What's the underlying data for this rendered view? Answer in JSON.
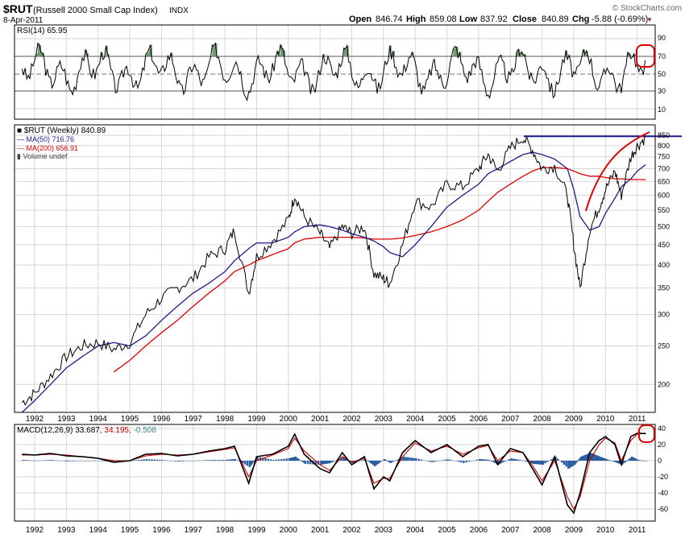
{
  "header": {
    "symbol": "$RUT",
    "name": "(Russell 2000 Small Cap Index)",
    "exchange": "INDX",
    "date": "8-Apr-2011",
    "watermark": "© StockCharts.com",
    "open_label": "Open",
    "open": "846.74",
    "high_label": "High",
    "high": "859.08",
    "low_label": "Low",
    "low": "837.92",
    "close_label": "Close",
    "close": "840.89",
    "chg_label": "Chg",
    "chg": "-5.88 (-0.69%)",
    "chg_arrow": "▼"
  },
  "rsi_panel": {
    "label": "RSI(14) 65.95",
    "ticks": [
      "90",
      "70",
      "50",
      "30",
      "10"
    ]
  },
  "price_panel": {
    "legend_main": "$RUT (Weekly) 840.89",
    "legend_ma50": "MA(50) 716.76",
    "legend_ma200": "MA(200) 656.91",
    "legend_volume": "Volume undef",
    "ticks": [
      "850",
      "800",
      "750",
      "700",
      "650",
      "600",
      "550",
      "500",
      "450",
      "400",
      "350",
      "300",
      "250",
      "200"
    ]
  },
  "macd_panel": {
    "label_main": "MACD(12,26,9)",
    "macd_value": "33.687,",
    "signal_value": "34.195,",
    "hist_value": "-0.508",
    "ticks": [
      "40",
      "20",
      "0",
      "-20",
      "-40",
      "-60"
    ]
  },
  "x_axis": {
    "years": [
      "1992",
      "1993",
      "1994",
      "1995",
      "1996",
      "1997",
      "1998",
      "1999",
      "2000",
      "2001",
      "2002",
      "2003",
      "2004",
      "2005",
      "2006",
      "2007",
      "2008",
      "2009",
      "2010",
      "2011"
    ]
  },
  "colors": {
    "price": "#000000",
    "price_down": "#8b1a1a",
    "ma50": "#1c1c8c",
    "ma200": "#dd0000",
    "macd": "#000000",
    "signal": "#cc0000",
    "hist": "#2b5fa0",
    "hist_value": "#3a8a8a",
    "rsi_fill": "#5a8a5a",
    "resistance": "#1c1c8c",
    "annotation": "#dd0000"
  },
  "chart_data": [
    {
      "type": "line",
      "title": "$RUT (Weekly) 840.89",
      "xlabel": "",
      "ylabel": "",
      "scale": "log",
      "ylim": [
        170,
        870
      ],
      "x": [
        1991.6,
        1992.0,
        1992.5,
        1993.0,
        1993.5,
        1994.0,
        1994.5,
        1995.0,
        1995.5,
        1996.0,
        1996.5,
        1997.0,
        1997.5,
        1998.0,
        1998.3,
        1998.75,
        1999.0,
        1999.5,
        2000.0,
        2000.2,
        2000.5,
        2001.0,
        2001.3,
        2001.7,
        2002.0,
        2002.4,
        2002.7,
        2003.0,
        2003.2,
        2003.6,
        2004.0,
        2004.5,
        2005.0,
        2005.5,
        2006.0,
        2006.3,
        2006.6,
        2007.0,
        2007.4,
        2007.7,
        2008.0,
        2008.4,
        2008.8,
        2009.0,
        2009.2,
        2009.5,
        2009.8,
        2010.0,
        2010.3,
        2010.5,
        2010.8,
        2011.0,
        2011.27
      ],
      "series": [
        {
          "name": "$RUT",
          "values": [
            180,
            190,
            210,
            235,
            250,
            255,
            245,
            255,
            300,
            330,
            350,
            370,
            420,
            440,
            490,
            340,
            420,
            460,
            520,
            600,
            530,
            480,
            440,
            500,
            480,
            500,
            380,
            370,
            360,
            450,
            580,
            560,
            640,
            630,
            700,
            760,
            690,
            790,
            840,
            780,
            700,
            710,
            600,
            450,
            350,
            490,
            560,
            620,
            690,
            600,
            750,
            800,
            840
          ]
        },
        {
          "name": "MA(50)",
          "values": [
            170,
            182,
            200,
            220,
            235,
            250,
            255,
            250,
            265,
            290,
            315,
            340,
            360,
            385,
            410,
            440,
            455,
            455,
            470,
            485,
            500,
            505,
            500,
            490,
            480,
            470,
            460,
            445,
            430,
            420,
            450,
            500,
            560,
            600,
            640,
            680,
            700,
            730,
            760,
            770,
            760,
            740,
            700,
            620,
            530,
            490,
            500,
            540,
            590,
            630,
            660,
            690,
            716.76
          ]
        },
        {
          "name": "MA(200)",
          "values": [
            null,
            null,
            null,
            null,
            null,
            null,
            215,
            230,
            250,
            270,
            290,
            315,
            340,
            365,
            385,
            400,
            410,
            425,
            440,
            455,
            465,
            470,
            470,
            470,
            470,
            468,
            465,
            465,
            465,
            468,
            475,
            485,
            500,
            520,
            550,
            580,
            610,
            640,
            670,
            690,
            705,
            705,
            700,
            690,
            680,
            670,
            670,
            665,
            660,
            660,
            658,
            657,
            656.91
          ]
        }
      ],
      "resistance": 845
    },
    {
      "type": "line",
      "title": "RSI(14) 65.95",
      "ylim": [
        0,
        100
      ],
      "series": [
        {
          "name": "RSI(14)",
          "last": 65.95
        }
      ],
      "reference_lines": [
        70,
        50,
        30
      ]
    },
    {
      "type": "bar",
      "title": "MACD(12,26,9) 33.687, 34.195, -0.508",
      "ylim": [
        -75,
        45
      ],
      "x": [
        1991.6,
        1992.0,
        1992.5,
        1993.0,
        1993.5,
        1994.0,
        1994.5,
        1995.0,
        1995.5,
        1996.0,
        1996.5,
        1997.0,
        1997.5,
        1998.0,
        1998.3,
        1998.75,
        1999.0,
        1999.5,
        2000.0,
        2000.2,
        2000.5,
        2001.0,
        2001.3,
        2001.7,
        2002.0,
        2002.4,
        2002.7,
        2003.0,
        2003.2,
        2003.6,
        2004.0,
        2004.5,
        2005.0,
        2005.5,
        2006.0,
        2006.3,
        2006.6,
        2007.0,
        2007.4,
        2007.7,
        2008.0,
        2008.4,
        2008.8,
        2009.0,
        2009.2,
        2009.5,
        2009.8,
        2010.0,
        2010.3,
        2010.5,
        2010.8,
        2011.0,
        2011.27
      ],
      "series": [
        {
          "name": "MACD",
          "values": [
            8,
            7,
            9,
            6,
            5,
            3,
            -2,
            0,
            8,
            9,
            6,
            8,
            12,
            15,
            18,
            -28,
            5,
            8,
            18,
            33,
            8,
            -10,
            -15,
            10,
            -5,
            5,
            -35,
            -20,
            -25,
            10,
            25,
            10,
            20,
            5,
            18,
            20,
            -5,
            15,
            10,
            -10,
            -30,
            5,
            -55,
            -65,
            -40,
            10,
            25,
            30,
            20,
            -5,
            30,
            34,
            33.687
          ]
        },
        {
          "name": "Signal",
          "values": [
            7,
            7,
            8,
            7,
            5,
            3,
            0,
            0,
            6,
            8,
            7,
            8,
            11,
            14,
            16,
            -20,
            0,
            7,
            15,
            28,
            12,
            -5,
            -12,
            5,
            -2,
            3,
            -28,
            -22,
            -22,
            5,
            22,
            12,
            18,
            8,
            16,
            19,
            0,
            12,
            10,
            -6,
            -25,
            0,
            -45,
            -60,
            -45,
            0,
            20,
            28,
            22,
            0,
            25,
            33,
            34.195
          ]
        },
        {
          "name": "Histogram",
          "values": [
            1,
            0,
            1,
            -1,
            0,
            0,
            -2,
            0,
            2,
            1,
            -1,
            0,
            1,
            1,
            2,
            -8,
            5,
            1,
            3,
            5,
            -4,
            -5,
            -3,
            5,
            -3,
            2,
            -7,
            2,
            -3,
            5,
            3,
            -2,
            2,
            -3,
            2,
            1,
            -5,
            3,
            0,
            -4,
            -5,
            5,
            -10,
            -5,
            5,
            10,
            5,
            2,
            -2,
            -5,
            5,
            1,
            -0.508
          ]
        }
      ]
    }
  ]
}
